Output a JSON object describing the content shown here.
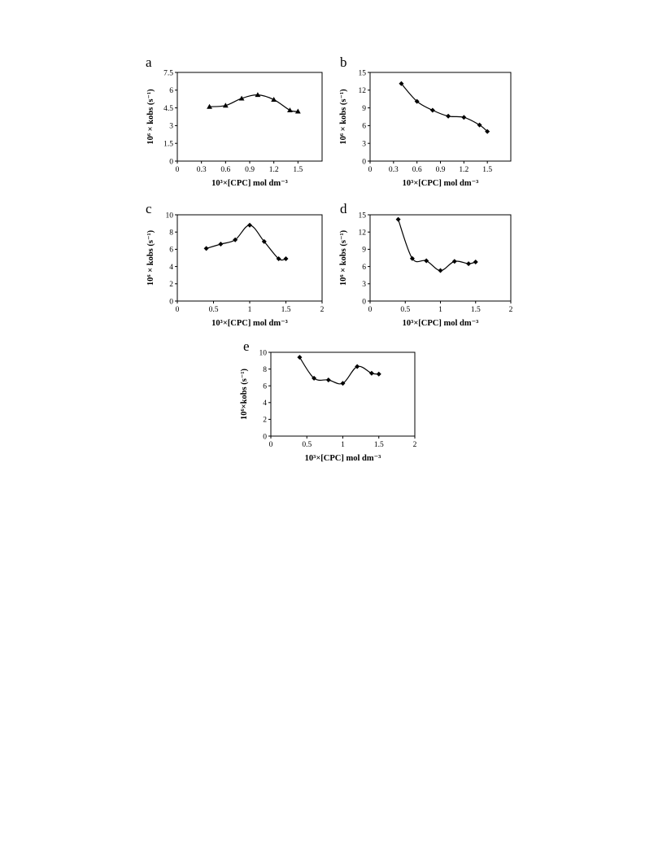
{
  "chart_data": [
    {
      "type": "line",
      "panel": "a",
      "marker": "triangle",
      "x": [
        0.4,
        0.6,
        0.8,
        1.0,
        1.2,
        1.4,
        1.5
      ],
      "y": [
        4.6,
        4.7,
        5.3,
        5.6,
        5.2,
        4.3,
        4.2
      ],
      "xticks": [
        "0",
        "0.3",
        "0.6",
        "0.9",
        "1.2",
        "1.5"
      ],
      "yticks": [
        "0",
        "1.5",
        "3",
        "4.5",
        "6",
        "7.5"
      ],
      "xlim": [
        0,
        1.8
      ],
      "ylim": [
        0,
        7.5
      ],
      "xlabel": "10³×[CPC] mol dm⁻³",
      "ylabel": "10⁶ × kobs (s⁻¹)",
      "grid": false
    },
    {
      "type": "line",
      "panel": "b",
      "marker": "diamond",
      "x": [
        0.4,
        0.6,
        0.8,
        1.0,
        1.2,
        1.4,
        1.5
      ],
      "y": [
        13.1,
        10.1,
        8.6,
        7.6,
        7.4,
        6.1,
        5.0
      ],
      "xticks": [
        "0",
        "0.3",
        "0.6",
        "0.9",
        "1.2",
        "1.5"
      ],
      "yticks": [
        "0",
        "3",
        "6",
        "9",
        "12",
        "15"
      ],
      "xlim": [
        0,
        1.8
      ],
      "ylim": [
        0,
        15
      ],
      "xlabel": "10³×[CPC] mol dm⁻³",
      "ylabel": "10⁶ × kobs (s⁻¹)",
      "grid": false
    },
    {
      "type": "line",
      "panel": "c",
      "marker": "diamond",
      "x": [
        0.4,
        0.6,
        0.8,
        1.0,
        1.2,
        1.4,
        1.5
      ],
      "y": [
        6.1,
        6.6,
        7.1,
        8.8,
        6.9,
        4.9,
        4.9
      ],
      "xticks": [
        "0",
        "0.5",
        "1",
        "1.5",
        "2"
      ],
      "yticks": [
        "0",
        "2",
        "4",
        "6",
        "8",
        "10"
      ],
      "xlim": [
        0,
        2
      ],
      "ylim": [
        0,
        10
      ],
      "xlabel": "10³×[CPC] mol dm⁻³",
      "ylabel": "10⁶ × kobs (s⁻¹)",
      "grid": false
    },
    {
      "type": "line",
      "panel": "d",
      "marker": "diamond",
      "x": [
        0.4,
        0.6,
        0.8,
        1.0,
        1.2,
        1.4,
        1.5
      ],
      "y": [
        14.2,
        7.4,
        7.0,
        5.3,
        6.9,
        6.5,
        6.8
      ],
      "xticks": [
        "0",
        "0.5",
        "1",
        "1.5",
        "2"
      ],
      "yticks": [
        "0",
        "3",
        "6",
        "9",
        "12",
        "15"
      ],
      "xlim": [
        0,
        2
      ],
      "ylim": [
        0,
        15
      ],
      "xlabel": "10³×[CPC] mol dm⁻³",
      "ylabel": "10⁶ × kobs (s⁻¹)",
      "grid": false
    },
    {
      "type": "line",
      "panel": "e",
      "marker": "diamond",
      "x": [
        0.4,
        0.6,
        0.8,
        1.0,
        1.2,
        1.4,
        1.5
      ],
      "y": [
        9.4,
        6.9,
        6.7,
        6.3,
        8.3,
        7.5,
        7.4
      ],
      "xticks": [
        "0",
        "0.5",
        "1",
        "1.5",
        "2"
      ],
      "yticks": [
        "0",
        "2",
        "4",
        "6",
        "8",
        "10"
      ],
      "xlim": [
        0,
        2
      ],
      "ylim": [
        0,
        10
      ],
      "xlabel": "10³×[CPC] mol dm⁻³",
      "ylabel": "10⁶×kobs (s⁻¹)",
      "grid": false
    }
  ]
}
